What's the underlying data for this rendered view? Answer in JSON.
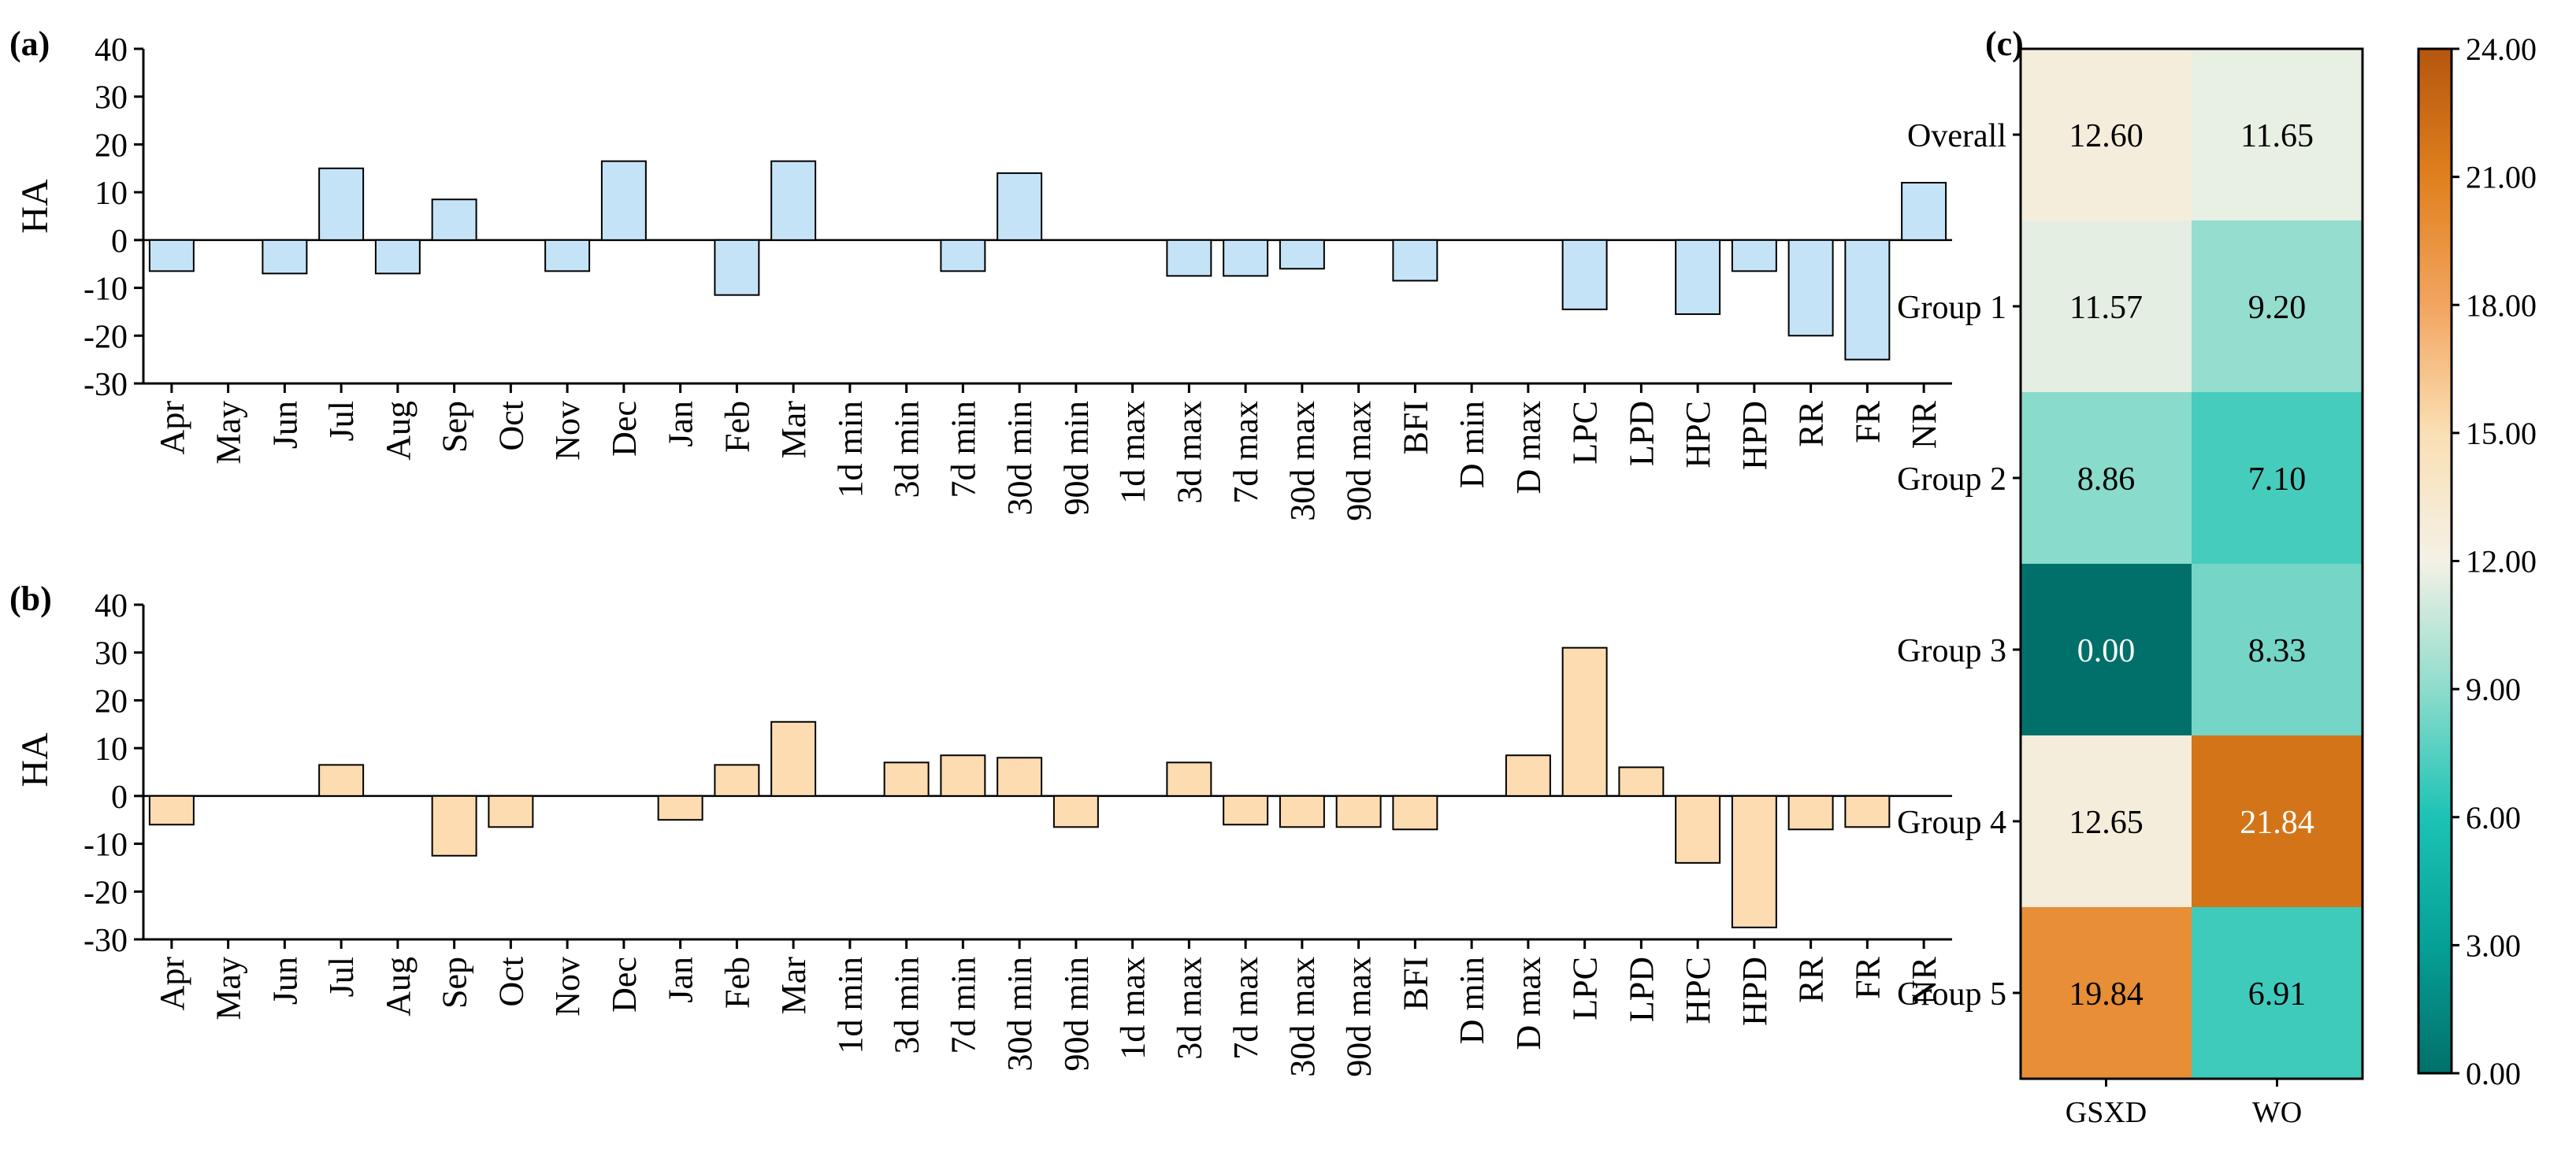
{
  "chart_data": [
    {
      "panel": "(a)",
      "type": "bar",
      "ylabel": "HA",
      "ylim": [
        -30,
        40
      ],
      "yticks": [
        -30,
        -20,
        -10,
        0,
        10,
        20,
        30,
        40
      ],
      "bar_color": "#c5e3f7",
      "categories": [
        "Apr",
        "May",
        "Jun",
        "Jul",
        "Aug",
        "Sep",
        "Oct",
        "Nov",
        "Dec",
        "Jan",
        "Feb",
        "Mar",
        "1d min",
        "3d min",
        "7d min",
        "30d min",
        "90d min",
        "1d max",
        "3d max",
        "7d max",
        "30d max",
        "90d max",
        "BFI",
        "D min",
        "D max",
        "LPC",
        "LPD",
        "HPC",
        "HPD",
        "RR",
        "FR",
        "NR"
      ],
      "values": [
        -6.5,
        0,
        -7,
        15,
        -7,
        8.5,
        0,
        -6.5,
        16.5,
        0,
        -11.5,
        16.5,
        0,
        0,
        -6.5,
        14,
        0,
        0,
        -7.5,
        -7.5,
        -6,
        0,
        -8.5,
        0,
        0,
        -14.5,
        0,
        -15.5,
        -6.5,
        -20,
        -25,
        12
      ]
    },
    {
      "panel": "(b)",
      "type": "bar",
      "ylabel": "HA",
      "ylim": [
        -30,
        40
      ],
      "yticks": [
        -30,
        -20,
        -10,
        0,
        10,
        20,
        30,
        40
      ],
      "bar_color": "#fcdcb0",
      "categories": [
        "Apr",
        "May",
        "Jun",
        "Jul",
        "Aug",
        "Sep",
        "Oct",
        "Nov",
        "Dec",
        "Jan",
        "Feb",
        "Mar",
        "1d min",
        "3d min",
        "7d min",
        "30d min",
        "90d min",
        "1d max",
        "3d max",
        "7d max",
        "30d max",
        "90d max",
        "BFI",
        "D min",
        "D max",
        "LPC",
        "LPD",
        "HPC",
        "HPD",
        "RR",
        "FR",
        "NR"
      ],
      "values": [
        -6,
        0,
        0,
        6.5,
        0,
        -12.5,
        -6.5,
        0,
        0,
        -5,
        6.5,
        15.5,
        0,
        7,
        8.5,
        8,
        -6.5,
        0,
        7,
        -6,
        -6.5,
        -6.5,
        -7,
        0,
        8.5,
        31,
        6,
        -14,
        -27.5,
        -7,
        -6.5,
        0
      ]
    },
    {
      "panel": "(c)",
      "type": "heatmap",
      "rows": [
        "Overall",
        "Group 1",
        "Group 2",
        "Group 3",
        "Group 4",
        "Group 5"
      ],
      "columns": [
        "GSXD",
        "WO"
      ],
      "values": [
        [
          12.6,
          11.65
        ],
        [
          11.57,
          9.2
        ],
        [
          8.86,
          7.1
        ],
        [
          0.0,
          8.33
        ],
        [
          12.65,
          21.84
        ],
        [
          19.84,
          6.91
        ]
      ],
      "labels": [
        [
          "12.60",
          "11.65"
        ],
        [
          "11.57",
          "9.20"
        ],
        [
          "8.86",
          "7.10"
        ],
        [
          "0.00",
          "8.33"
        ],
        [
          "12.65",
          "21.84"
        ],
        [
          "19.84",
          "6.91"
        ]
      ],
      "colorbar": {
        "range": [
          0,
          24
        ],
        "ticks": [
          "0.00",
          "3.00",
          "6.00",
          "9.00",
          "12.00",
          "15.00",
          "18.00",
          "21.00",
          "24.00"
        ],
        "colors": {
          "0": "#02706a",
          "3": "#06a097",
          "6": "#1cc3b5",
          "9": "#8edccc",
          "12": "#f4f1e6",
          "15": "#fadfb4",
          "18": "#f2a560",
          "21": "#e0801d",
          "24": "#b5560f"
        }
      }
    }
  ]
}
